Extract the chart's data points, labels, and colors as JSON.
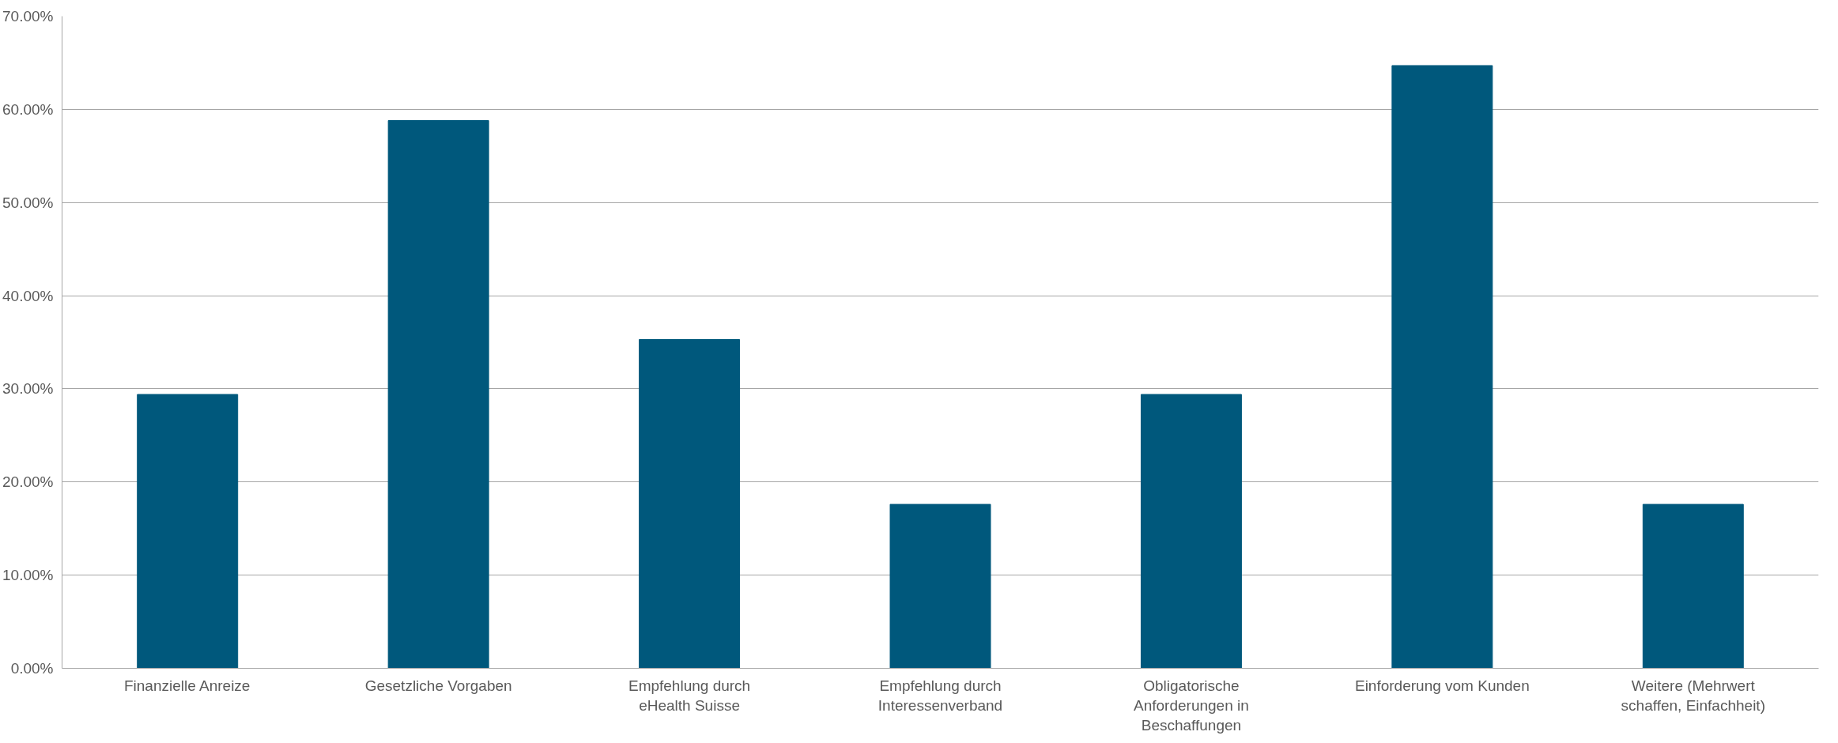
{
  "chart_data": {
    "type": "bar",
    "categories": [
      "Finanzielle Anreize",
      "Gesetzliche Vorgaben",
      "Empfehlung durch eHealth Suisse",
      "Empfehlung durch Interessenverband",
      "Obligatorische Anforderungen in Beschaffungen",
      "Einforderung vom Kunden",
      "Weitere (Mehrwert schaffen, Einfachheit)"
    ],
    "values": [
      29.4,
      58.8,
      35.3,
      17.6,
      29.4,
      64.7,
      17.6
    ],
    "color": "#00587c",
    "ylim": [
      0,
      70
    ],
    "yticks": [
      {
        "value": 0,
        "label": "0.00%"
      },
      {
        "value": 10,
        "label": "10.00%"
      },
      {
        "value": 20,
        "label": "20.00%"
      },
      {
        "value": 30,
        "label": "30.00%"
      },
      {
        "value": 40,
        "label": "40.00%"
      },
      {
        "value": 50,
        "label": "50.00%"
      },
      {
        "value": 60,
        "label": "60.00%"
      },
      {
        "value": 70,
        "label": "70.00%"
      }
    ],
    "grid": "y"
  }
}
